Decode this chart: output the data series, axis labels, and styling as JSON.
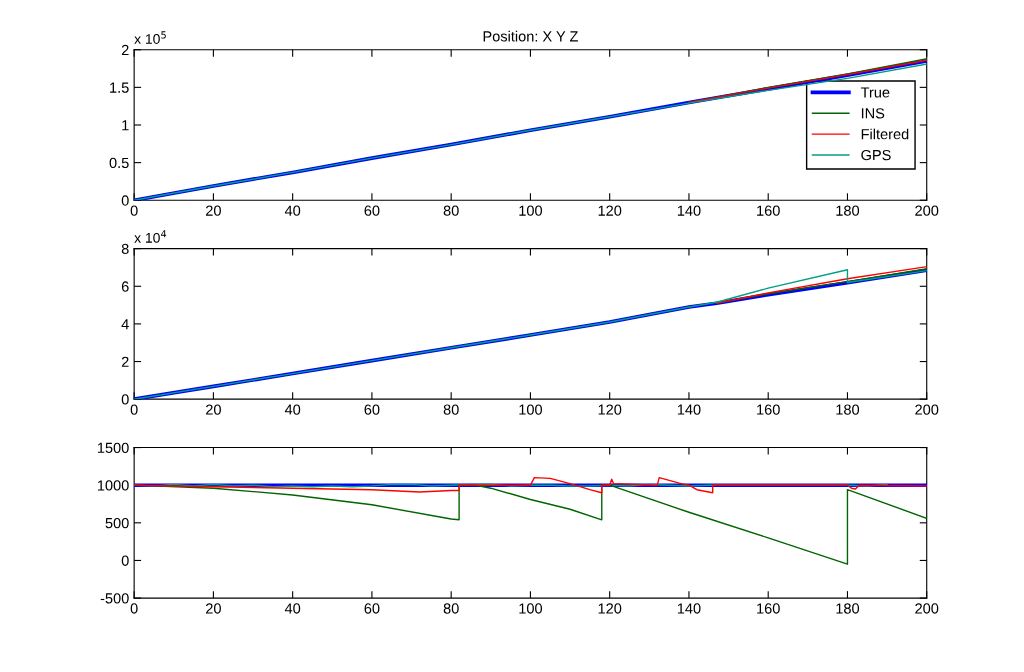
{
  "chart_data": [
    {
      "type": "line",
      "title": "Position: X Y Z",
      "annotations": [
        "x 10$^{5}$"
      ],
      "legend": "right",
      "grid": false,
      "xlim": [
        0,
        200
      ],
      "xticks": [
        0,
        20,
        40,
        60,
        80,
        100,
        120,
        140,
        160,
        180,
        200
      ],
      "ylim": [
        0,
        2
      ],
      "yticks": [
        0,
        0.5,
        1,
        1.5,
        2
      ],
      "x": [
        0,
        20,
        40,
        60,
        80,
        100,
        120,
        140,
        160,
        180,
        200
      ],
      "series": [
        {
          "name": "True",
          "color": "#0000ff",
          "values": [
            0,
            0.19,
            0.37,
            0.56,
            0.74,
            0.93,
            1.11,
            1.3,
            1.48,
            1.66,
            1.85
          ]
        },
        {
          "name": "INS",
          "color": "#006400",
          "values": [
            null,
            null,
            null,
            null,
            null,
            null,
            null,
            1.3,
            1.5,
            1.68,
            1.88
          ]
        },
        {
          "name": "Filtered",
          "color": "#ff0000",
          "values": [
            null,
            null,
            null,
            null,
            null,
            null,
            null,
            1.3,
            1.49,
            1.67,
            1.86
          ]
        },
        {
          "name": "GPS",
          "color": "#00a080",
          "values": [
            0,
            0.19,
            0.37,
            0.56,
            0.74,
            0.93,
            1.11,
            1.29,
            1.46,
            1.62,
            1.81
          ]
        }
      ]
    },
    {
      "type": "line",
      "annotations": [
        "x 10$^{4}$"
      ],
      "grid": false,
      "xlim": [
        0,
        200
      ],
      "xticks": [
        0,
        20,
        40,
        60,
        80,
        100,
        120,
        140,
        160,
        180,
        200
      ],
      "ylim": [
        0,
        8
      ],
      "yticks": [
        0,
        2,
        4,
        6,
        8
      ],
      "x": [
        0,
        20,
        40,
        60,
        80,
        100,
        120,
        140,
        147,
        160,
        180,
        200
      ],
      "series": [
        {
          "color": "#0000ff",
          "values": [
            0,
            0.68,
            1.36,
            2.05,
            2.73,
            3.41,
            4.1,
            4.9,
            5.1,
            5.55,
            6.19,
            6.85
          ]
        },
        {
          "color": "#006400",
          "values": [
            null,
            null,
            null,
            null,
            null,
            null,
            null,
            null,
            5.1,
            5.6,
            6.25,
            6.93
          ]
        },
        {
          "color": "#ff0000",
          "values": [
            null,
            null,
            null,
            null,
            null,
            null,
            null,
            null,
            5.1,
            5.65,
            6.4,
            7.04
          ]
        },
        {
          "color": "#00a080",
          "x": [
            0,
            20,
            40,
            60,
            80,
            100,
            120,
            140,
            147,
            160,
            180,
            180,
            200
          ],
          "values": [
            0,
            0.68,
            1.36,
            2.05,
            2.73,
            3.41,
            4.1,
            4.9,
            5.15,
            5.9,
            6.88,
            6.2,
            6.83
          ]
        }
      ]
    },
    {
      "type": "line",
      "grid": false,
      "xlim": [
        0,
        200
      ],
      "xticks": [
        0,
        20,
        40,
        60,
        80,
        100,
        120,
        140,
        160,
        180,
        200
      ],
      "ylim": [
        -500,
        1500
      ],
      "yticks": [
        -500,
        0,
        500,
        1000,
        1500
      ],
      "series": [
        {
          "color": "#0000ff",
          "x": [
            0,
            200
          ],
          "values": [
            1000,
            1000
          ]
        },
        {
          "color": "#00a080",
          "x": [
            0,
            5,
            10,
            15,
            20,
            25,
            30,
            35,
            40,
            45,
            50,
            55,
            60,
            65,
            70,
            75,
            80,
            85,
            90,
            95,
            100,
            105,
            110,
            115,
            120,
            125,
            130,
            135,
            140,
            145,
            150,
            160,
            170,
            180,
            185,
            190
          ],
          "values": [
            1000,
            990,
            1010,
            990,
            1010,
            990,
            1000,
            980,
            990,
            980,
            990,
            980,
            990,
            1010,
            1010,
            990,
            1000,
            1010,
            1010,
            990,
            1000,
            1000,
            990,
            990,
            1000,
            990,
            1010,
            1000,
            990,
            1000,
            1000,
            1000,
            1000,
            1000,
            990,
            1010
          ]
        },
        {
          "color": "#006400",
          "x": [
            0,
            20,
            40,
            60,
            80,
            82,
            82,
            86,
            90,
            100,
            110,
            118,
            118,
            120,
            140,
            160,
            180,
            180,
            200
          ],
          "values": [
            1000,
            960,
            870,
            740,
            550,
            540,
            1000,
            1000,
            960,
            810,
            680,
            540,
            1000,
            1000,
            640,
            300,
            -50,
            940,
            560
          ]
        },
        {
          "color": "#ff0000",
          "x": [
            0,
            20,
            40,
            60,
            72,
            80,
            82,
            82,
            100,
            101,
            105,
            110,
            115,
            118,
            118,
            120,
            120.5,
            121,
            132,
            132.5,
            138,
            140,
            142,
            146,
            146,
            180,
            181,
            182,
            183,
            200
          ],
          "values": [
            1000,
            980,
            960,
            940,
            910,
            930,
            930,
            1000,
            1000,
            1100,
            1090,
            1020,
            940,
            900,
            1000,
            1000,
            1080,
            1020,
            1000,
            1100,
            1020,
            1000,
            940,
            900,
            1000,
            1000,
            960,
            950,
            1000,
            990
          ]
        }
      ]
    }
  ]
}
